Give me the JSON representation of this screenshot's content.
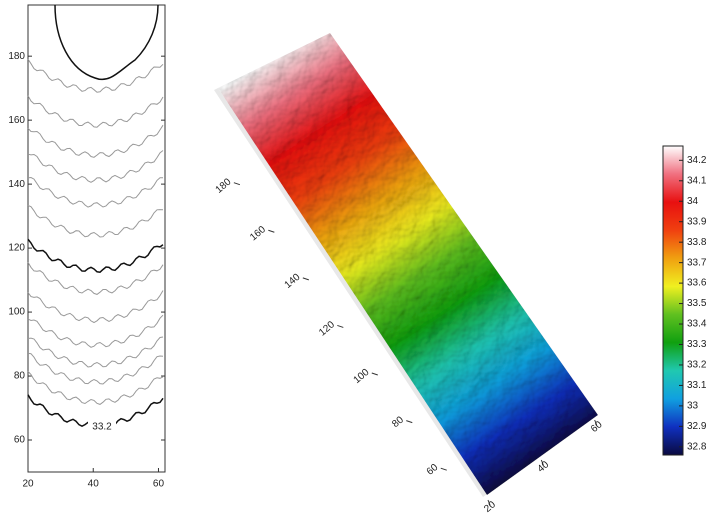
{
  "chart_data": [
    {
      "type": "contour",
      "xlim": [
        20,
        62
      ],
      "xticks": [
        20,
        40,
        60
      ],
      "ylim": [
        50,
        196
      ],
      "yticks": [
        60,
        80,
        100,
        120,
        140,
        160,
        180
      ],
      "annotations": [
        "33.2"
      ],
      "color": "#999999"
    },
    {
      "type": "surface",
      "xlim": [
        20,
        62
      ],
      "xticks": [
        20,
        40,
        60
      ],
      "ylim": [
        50,
        195
      ],
      "yticks": [
        60,
        80,
        100,
        120,
        140,
        160,
        180
      ]
    },
    {
      "type": "colorbar",
      "ylim": [
        32.76,
        34.27
      ],
      "yticks": [
        32.8,
        32.9,
        33,
        33.1,
        33.2,
        33.3,
        33.4,
        33.5,
        33.6,
        33.7,
        33.8,
        33.9,
        34,
        34.1,
        34.2
      ],
      "colors": [
        "#0a0a40",
        "#1030c0",
        "#10a0e0",
        "#20c8b0",
        "#10a010",
        "#60c020",
        "#f0f020",
        "#f0a010",
        "#f04010",
        "#e81010",
        "#f07080",
        "#ffffff"
      ]
    }
  ]
}
